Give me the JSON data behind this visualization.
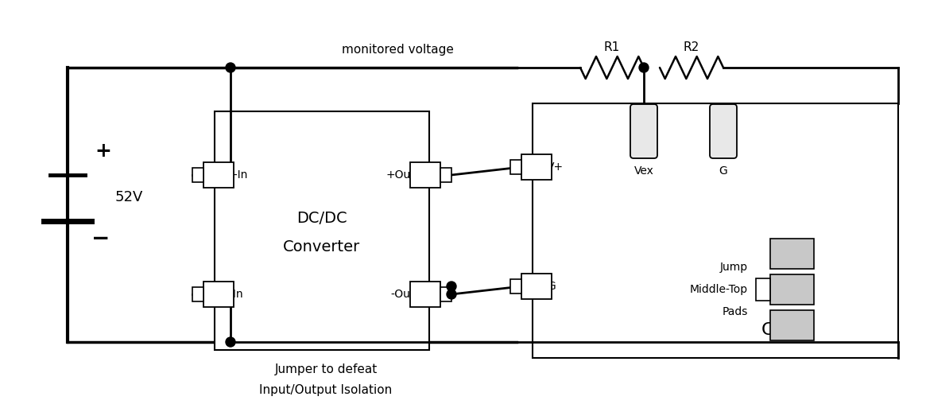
{
  "bg_color": "#ffffff",
  "line_color": "#000000",
  "fig_width": 11.46,
  "fig_height": 4.98,
  "voltage_label": "monitored voltage",
  "converter_label1": "DC/DC",
  "converter_label2": "Converter",
  "ca_label": "CA V3",
  "jumper_label1": "Jumper to defeat",
  "jumper_label2": "Input/Output Isolation",
  "r1_label": "R1",
  "r2_label": "R2",
  "vex_label": "Vex",
  "g_label": "G",
  "jump_label1": "Jump",
  "jump_label2": "Middle-Top",
  "jump_label3": "Pads",
  "v52_label": "52V",
  "plus_label": "+",
  "minus_label": "−",
  "pin_in_label": "+In",
  "pin_in_minus": "-In",
  "pin_out_plus": "+Out",
  "pin_out_minus": "-Out",
  "pin_vplus": "V+",
  "pin_g": "G"
}
